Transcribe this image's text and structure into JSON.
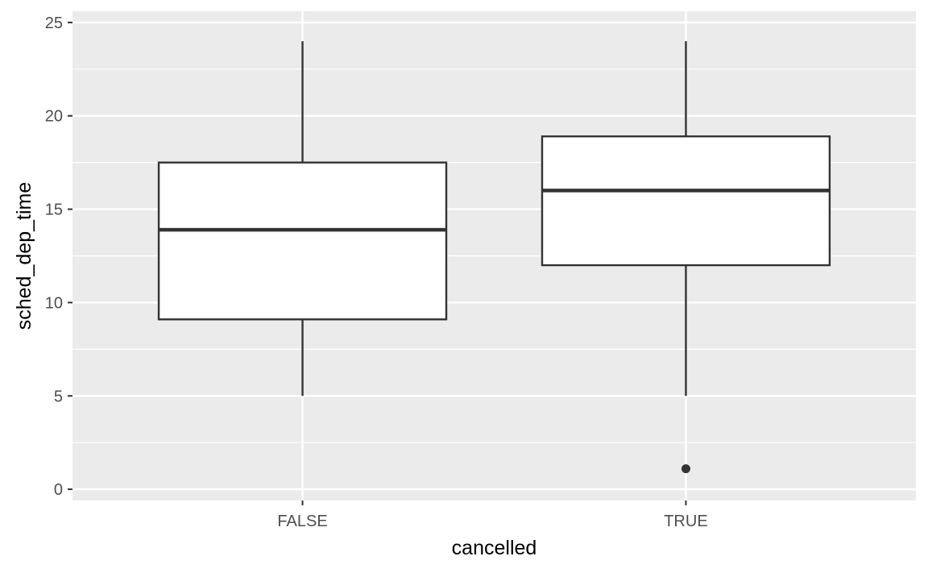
{
  "chart_data": {
    "type": "boxplot",
    "xlabel": "cancelled",
    "ylabel": "sched_dep_time",
    "categories": [
      "FALSE",
      "TRUE"
    ],
    "ylim": [
      0,
      25
    ],
    "yticks": [
      0,
      5,
      10,
      15,
      20,
      25
    ],
    "grid": true,
    "boxes": [
      {
        "category": "FALSE",
        "whisker_low": 5,
        "q1": 9.1,
        "median": 13.9,
        "q3": 17.5,
        "whisker_high": 24,
        "outliers": []
      },
      {
        "category": "TRUE",
        "whisker_low": 5,
        "q1": 12,
        "median": 16,
        "q3": 18.9,
        "whisker_high": 24,
        "outliers": [
          1.1
        ]
      }
    ],
    "colors": {
      "panel": "#EBEBEB",
      "grid": "#FFFFFF",
      "box_fill": "#FFFFFF",
      "box_line": "#333333",
      "tick": "#333333"
    }
  }
}
